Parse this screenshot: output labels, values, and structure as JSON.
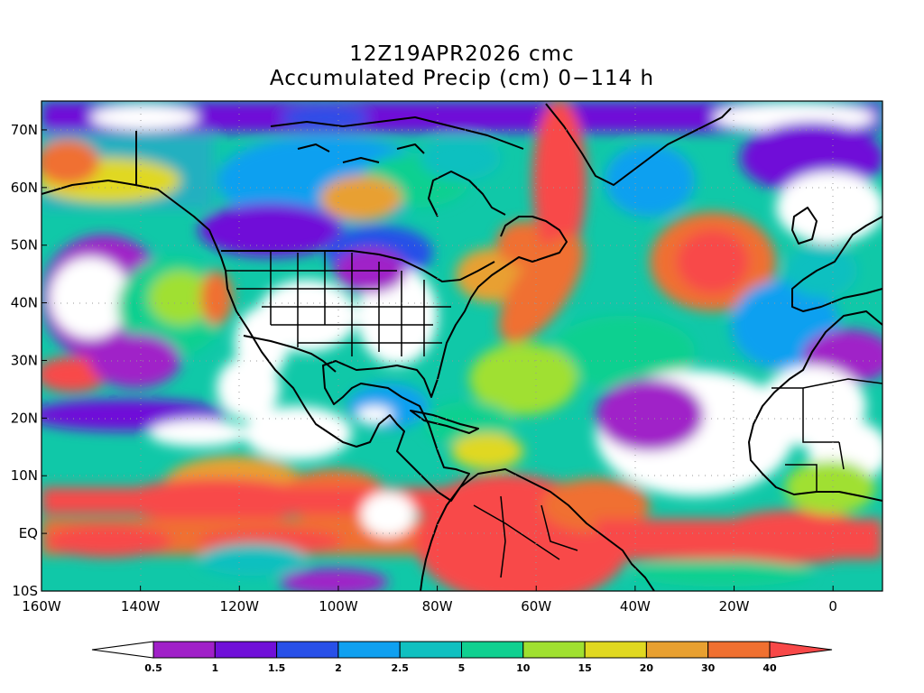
{
  "title": {
    "line1": "12Z19APR2026 cmc",
    "line2": "Accumulated Precip (cm) 0−114 h"
  },
  "map": {
    "lon_range": [
      -160,
      10
    ],
    "lat_range": [
      -10,
      75
    ],
    "lat_labels": [
      {
        "lat": 70,
        "text": "70N"
      },
      {
        "lat": 60,
        "text": "60N"
      },
      {
        "lat": 50,
        "text": "50N"
      },
      {
        "lat": 40,
        "text": "40N"
      },
      {
        "lat": 30,
        "text": "30N"
      },
      {
        "lat": 20,
        "text": "20N"
      },
      {
        "lat": 10,
        "text": "10N"
      },
      {
        "lat": 0,
        "text": "EQ"
      },
      {
        "lat": -10,
        "text": "10S"
      }
    ],
    "lon_labels": [
      {
        "lon": -160,
        "text": "160W"
      },
      {
        "lon": -140,
        "text": "140W"
      },
      {
        "lon": -120,
        "text": "120W"
      },
      {
        "lon": -100,
        "text": "100W"
      },
      {
        "lon": -80,
        "text": "80W"
      },
      {
        "lon": -60,
        "text": "60W"
      },
      {
        "lon": -40,
        "text": "40W"
      },
      {
        "lon": -20,
        "text": "20W"
      },
      {
        "lon": 0,
        "text": "0"
      }
    ],
    "grid": true
  },
  "colorbar": {
    "levels": [
      "0.5",
      "1",
      "1.5",
      "2",
      "2.5",
      "5",
      "10",
      "15",
      "20",
      "30",
      "40"
    ],
    "colors": [
      "#ffffff",
      "#a020c8",
      "#7010d8",
      "#2850e8",
      "#10a0f0",
      "#10c0c0",
      "#10d090",
      "#a0e030",
      "#e0d820",
      "#e8a030",
      "#f07030",
      "#f84848"
    ]
  }
}
